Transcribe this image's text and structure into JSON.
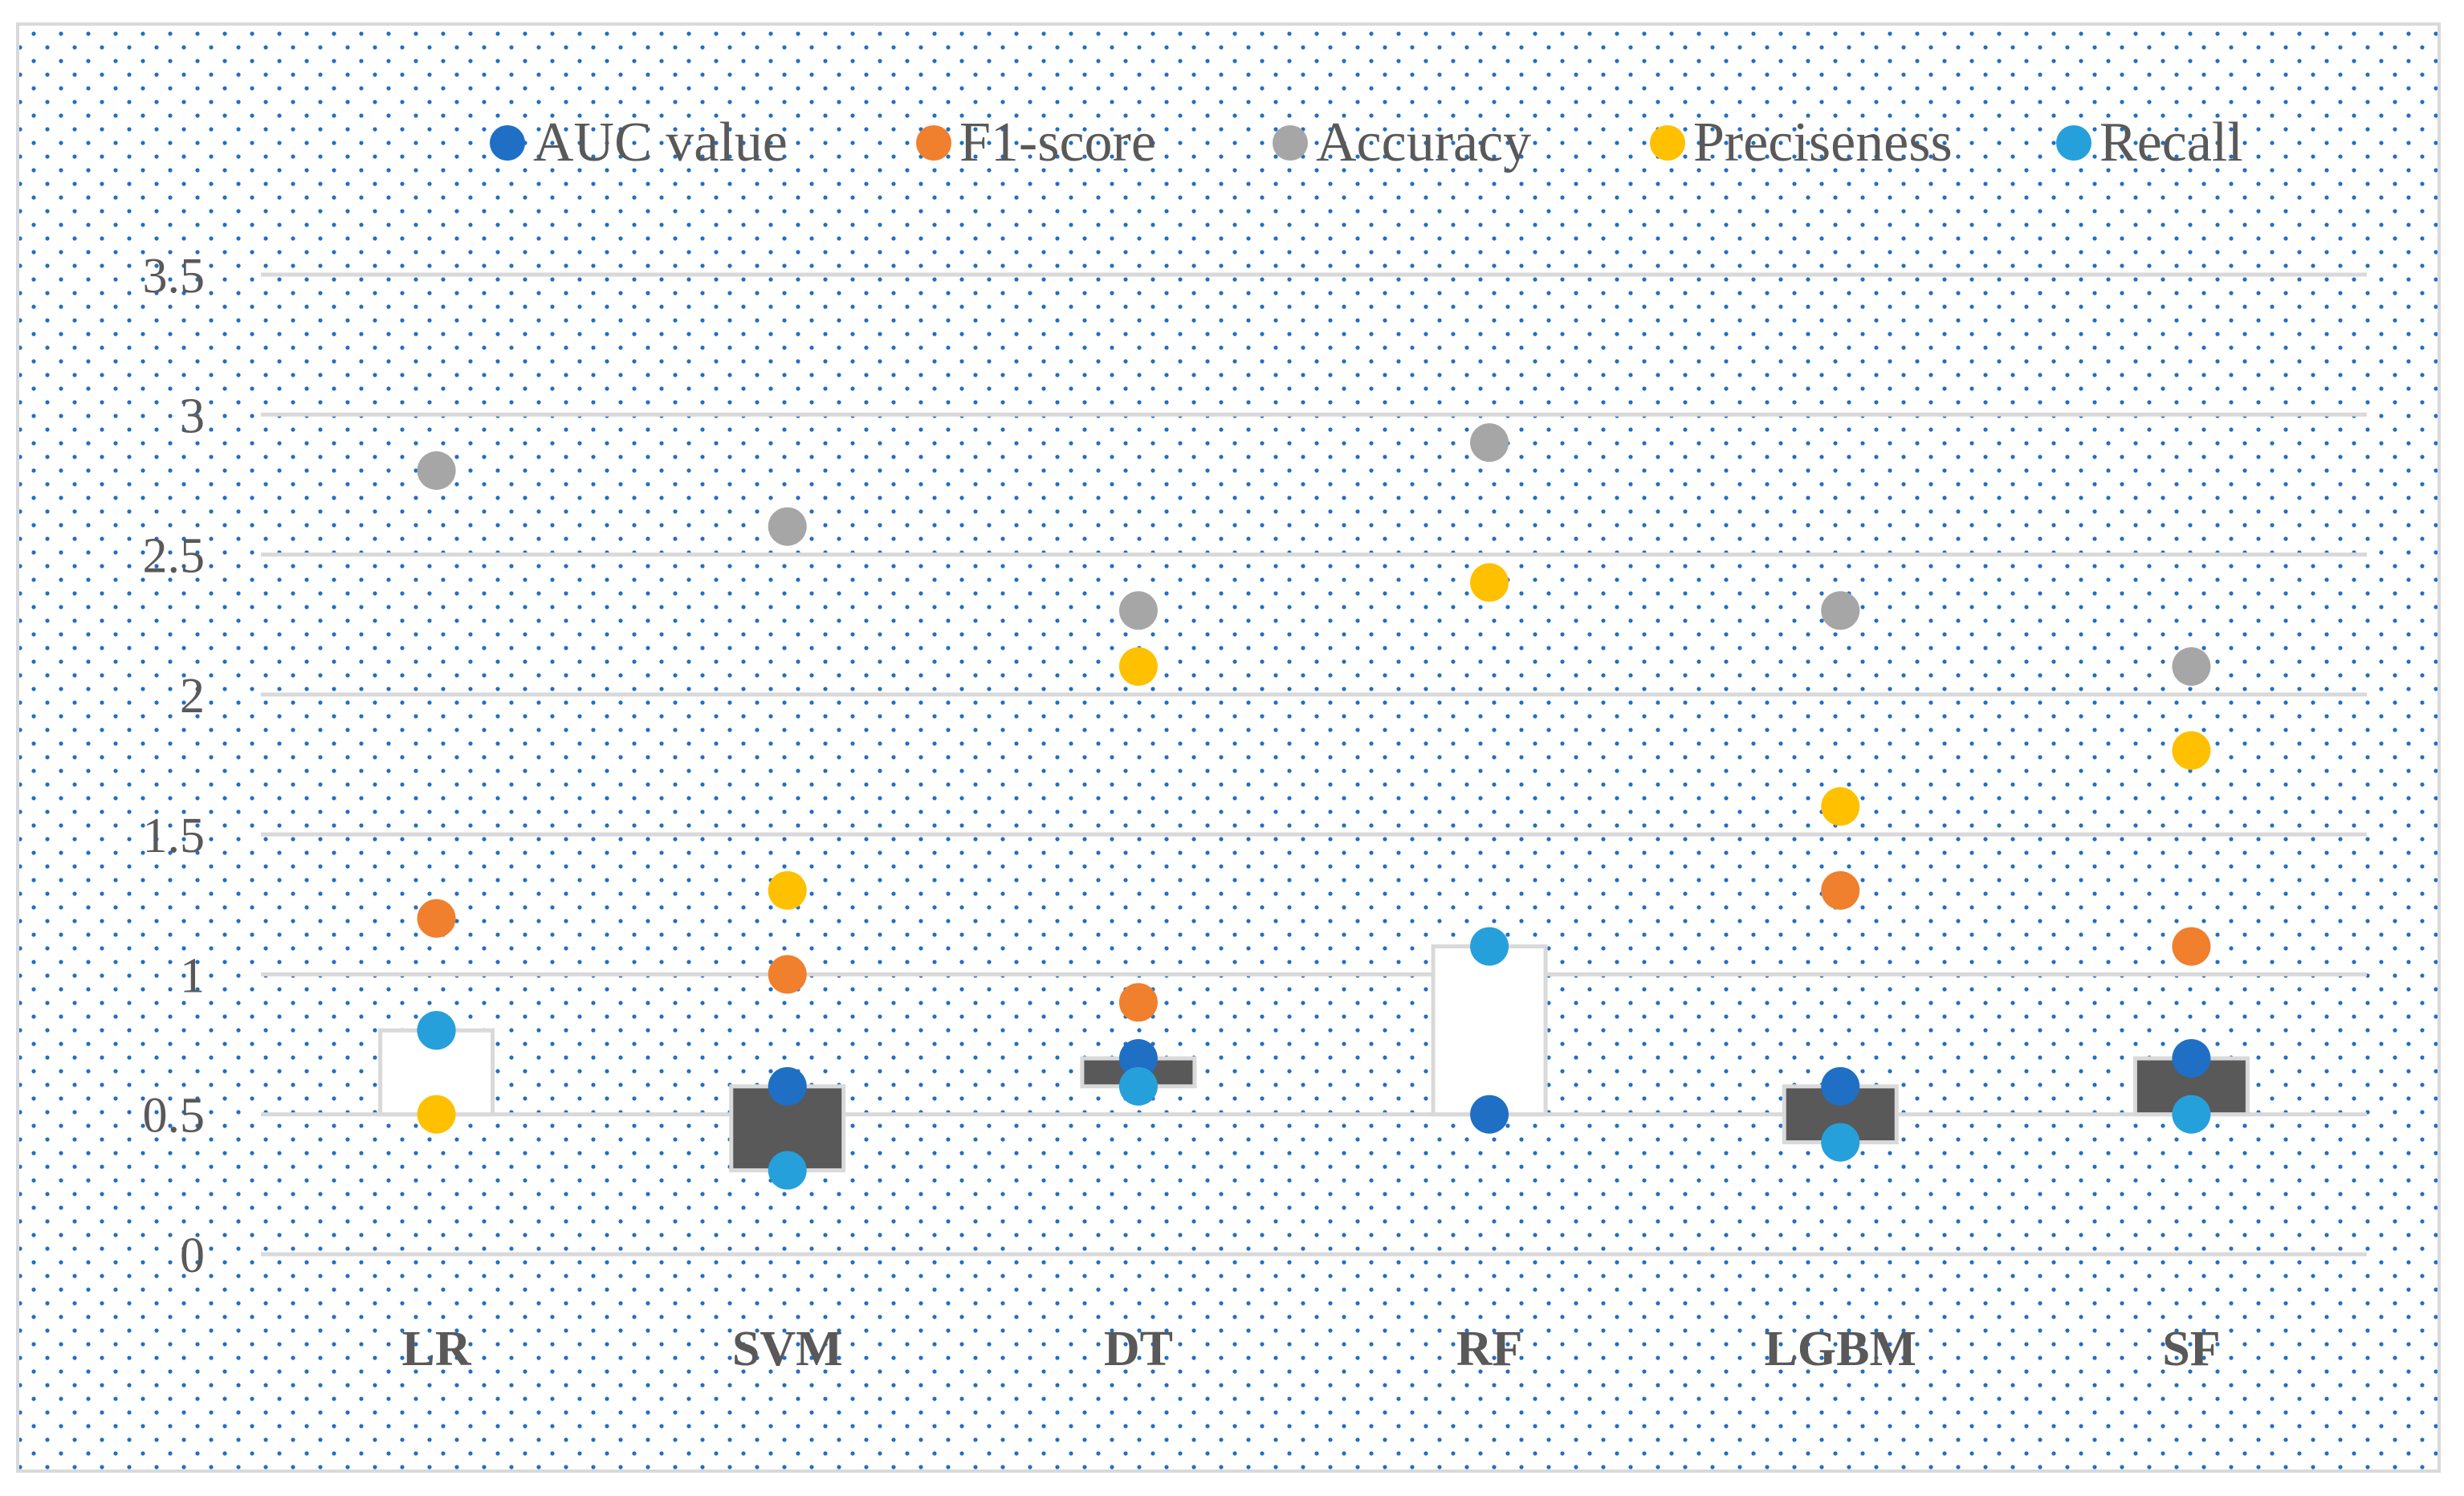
{
  "chart_data": {
    "type": "scatter",
    "categories": [
      "LR",
      "SVM",
      "DT",
      "RF",
      "LGBM",
      "SF"
    ],
    "ylim": [
      0,
      3.5
    ],
    "yticks": [
      "0",
      "0.5",
      "1",
      "1.5",
      "2",
      "2.5",
      "3",
      "3.5"
    ],
    "grid": true,
    "legend_position": "top",
    "background_pattern": "dotted",
    "series": [
      {
        "name": "AUC value",
        "color": "#1F6FC5",
        "values": [
          0.8,
          0.6,
          0.7,
          0.5,
          0.6,
          0.7
        ]
      },
      {
        "name": "F1-score",
        "color": "#F07F2E",
        "values": [
          1.2,
          1.0,
          0.9,
          null,
          1.3,
          1.1
        ]
      },
      {
        "name": "Accuracy",
        "color": "#A6A6A6",
        "values": [
          2.8,
          2.6,
          2.3,
          2.9,
          2.3,
          2.1
        ]
      },
      {
        "name": "Preciseness",
        "color": "#FFC000",
        "values": [
          0.5,
          1.3,
          2.1,
          2.4,
          1.6,
          1.8
        ]
      },
      {
        "name": "Recall",
        "color": "#26A0DA",
        "values": [
          0.8,
          0.3,
          0.6,
          1.1,
          0.4,
          0.5
        ]
      }
    ],
    "boxes": [
      {
        "category": "LR",
        "low": 0.5,
        "high": 0.8,
        "fill": "#ffffff"
      },
      {
        "category": "SVM",
        "low": 0.3,
        "high": 0.6,
        "fill": "#595959"
      },
      {
        "category": "DT",
        "low": 0.6,
        "high": 0.7,
        "fill": "#595959"
      },
      {
        "category": "RF",
        "low": 0.5,
        "high": 1.1,
        "fill": "#ffffff"
      },
      {
        "category": "LGBM",
        "low": 0.4,
        "high": 0.6,
        "fill": "#595959"
      },
      {
        "category": "SF",
        "low": 0.5,
        "high": 0.7,
        "fill": "#595959"
      }
    ]
  }
}
